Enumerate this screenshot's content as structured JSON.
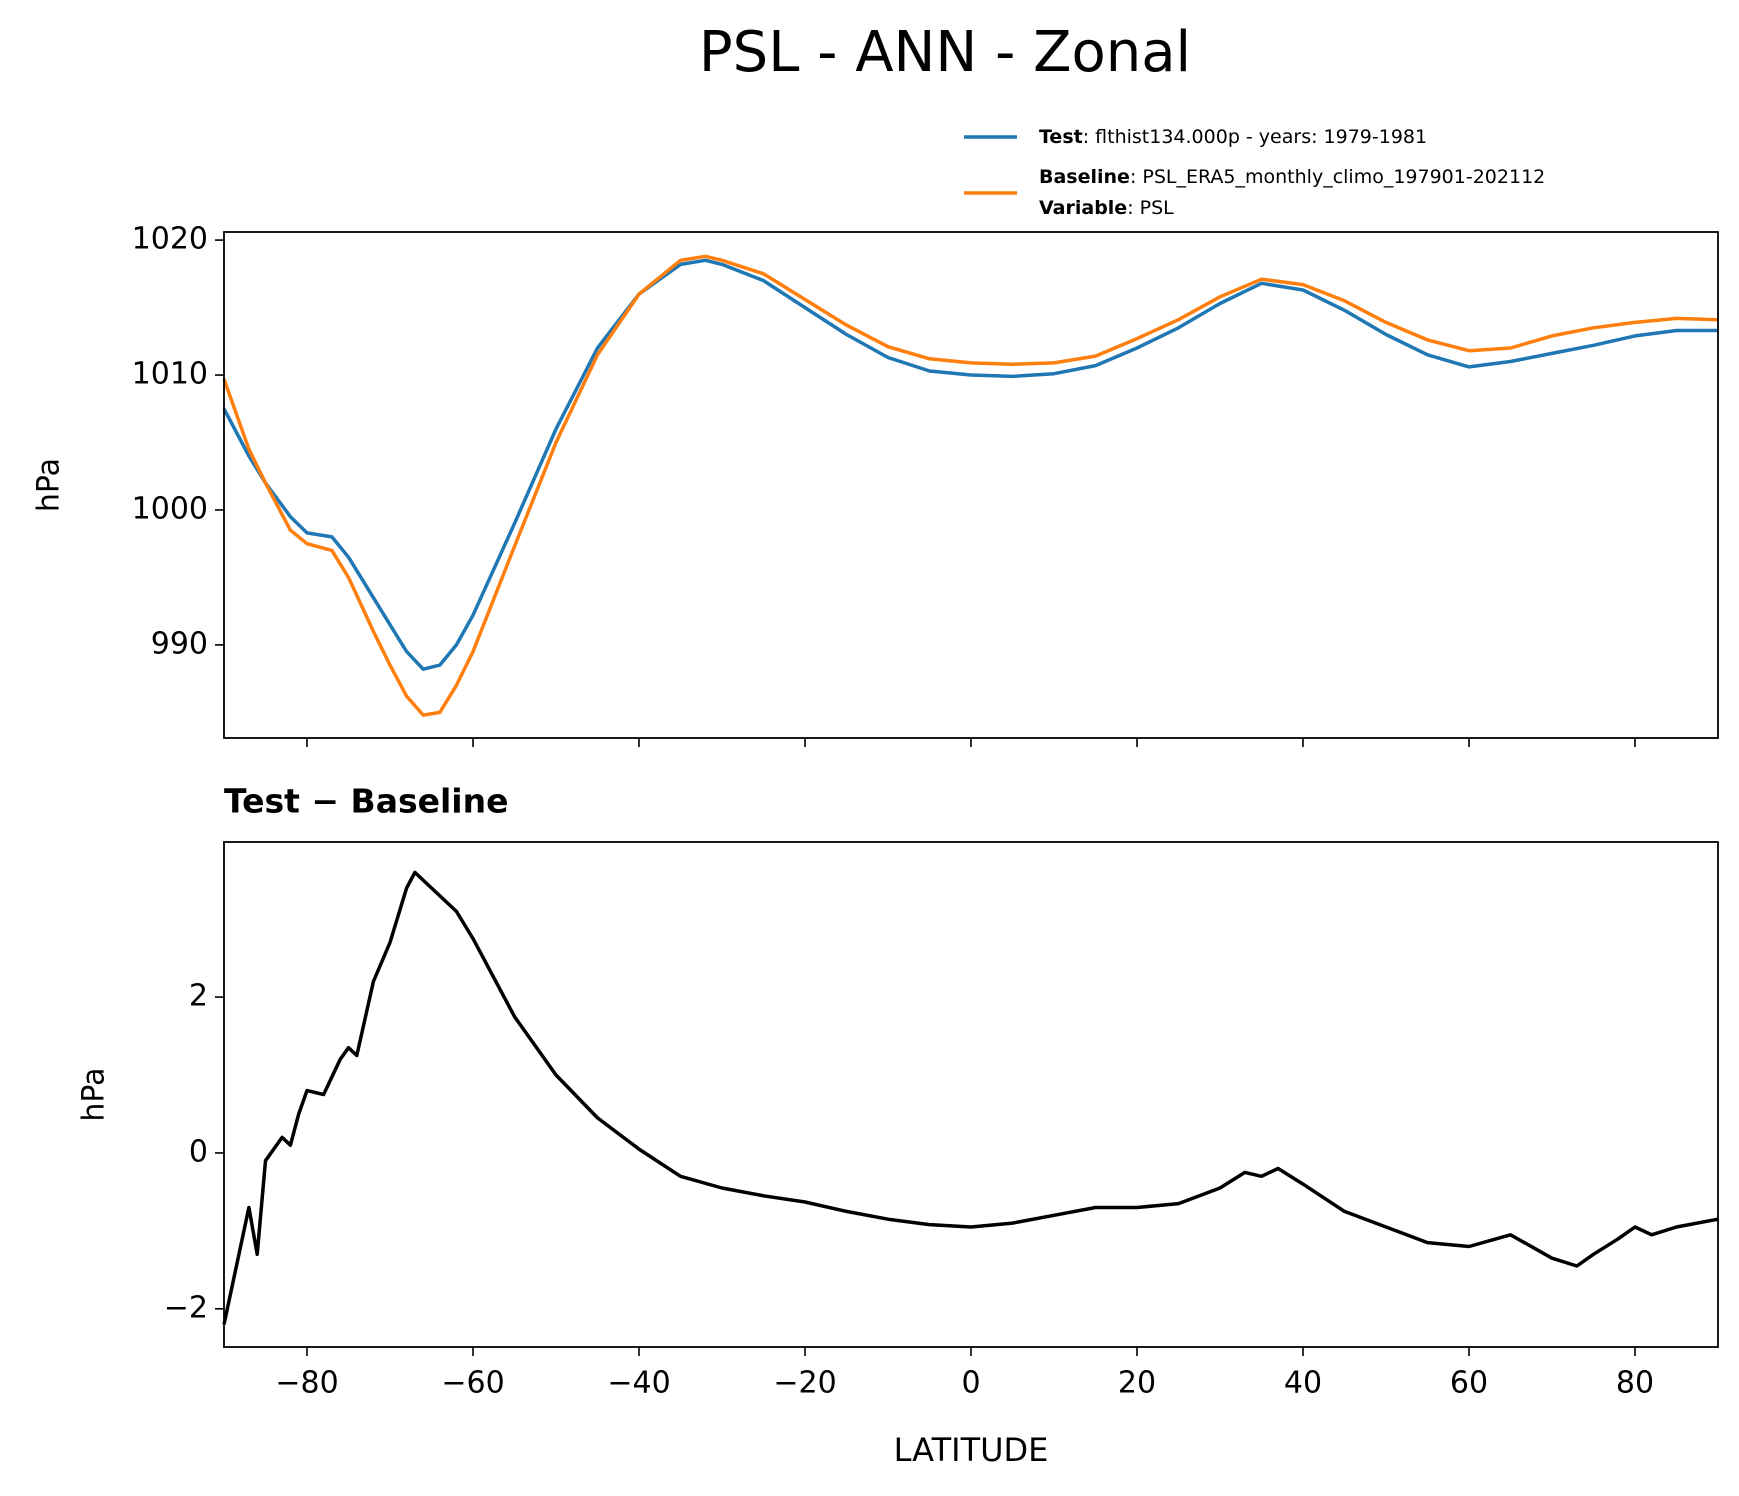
{
  "title": "PSL - ANN - Zonal",
  "chart_data": [
    {
      "type": "line",
      "ylabel": "hPa",
      "x": [
        -90,
        -87,
        -85,
        -82,
        -80,
        -77,
        -75,
        -72,
        -70,
        -68,
        -66,
        -64,
        -62,
        -60,
        -55,
        -50,
        -45,
        -40,
        -35,
        -32,
        -30,
        -25,
        -20,
        -15,
        -10,
        -5,
        0,
        5,
        10,
        15,
        20,
        25,
        30,
        35,
        40,
        45,
        50,
        55,
        60,
        65,
        70,
        75,
        80,
        85,
        90
      ],
      "series": [
        {
          "name": "Test",
          "description": ": flthist134.000p - years: 1979-1981",
          "color": "#1f77b4",
          "values": [
            1007.5,
            1004,
            1002,
            999.5,
            998.3,
            998,
            996.5,
            993.5,
            991.5,
            989.5,
            988.2,
            988.5,
            990,
            992.2,
            999,
            1006,
            1012,
            1016,
            1018.2,
            1018.5,
            1018.2,
            1017,
            1015,
            1013,
            1011.3,
            1010.3,
            1010,
            1009.9,
            1010.1,
            1010.7,
            1012,
            1013.5,
            1015.3,
            1016.8,
            1016.3,
            1014.8,
            1013,
            1011.5,
            1010.6,
            1011,
            1011.6,
            1012.2,
            1012.9,
            1013.3,
            1013.3
          ]
        },
        {
          "name": "Baseline",
          "description": ": PSL_ERA5_monthly_climo_197901-202112",
          "color": "#ff7f0e",
          "values": [
            1009.7,
            1004.5,
            1002,
            998.5,
            997.5,
            997,
            995,
            991,
            988.5,
            986.2,
            984.8,
            985,
            987,
            989.5,
            997.3,
            1005,
            1011.5,
            1016,
            1018.5,
            1018.8,
            1018.5,
            1017.5,
            1015.6,
            1013.7,
            1012.1,
            1011.2,
            1010.9,
            1010.8,
            1010.9,
            1011.4,
            1012.7,
            1014.1,
            1015.8,
            1017.1,
            1016.7,
            1015.5,
            1013.9,
            1012.6,
            1011.8,
            1012,
            1012.9,
            1013.5,
            1013.9,
            1014.2,
            1014.1
          ]
        }
      ],
      "legend_extra": {
        "name": "Variable",
        "description": ": PSL"
      },
      "xlim": [
        -90,
        90
      ],
      "xticks": [
        -80,
        -60,
        -40,
        -20,
        0,
        20,
        40,
        60,
        80
      ],
      "ylim": [
        983.1,
        1020.6
      ],
      "yticks": [
        990,
        1000,
        1010,
        1020
      ]
    },
    {
      "type": "line",
      "title": "Test − Baseline",
      "ylabel": "hPa",
      "xlabel": "LATITUDE",
      "color": "#000000",
      "x": [
        -90,
        -88,
        -87,
        -86,
        -85,
        -83,
        -82,
        -81,
        -80,
        -78,
        -76,
        -75,
        -74,
        -72,
        -70,
        -68,
        -67,
        -65,
        -62,
        -60,
        -55,
        -50,
        -45,
        -40,
        -35,
        -30,
        -25,
        -20,
        -15,
        -10,
        -5,
        0,
        5,
        10,
        15,
        20,
        25,
        30,
        33,
        35,
        37,
        40,
        45,
        50,
        55,
        60,
        65,
        70,
        73,
        75,
        78,
        80,
        82,
        85,
        90
      ],
      "values": [
        -2.2,
        -1.2,
        -0.7,
        -1.3,
        -0.1,
        0.2,
        0.1,
        0.5,
        0.8,
        0.75,
        1.2,
        1.35,
        1.25,
        2.2,
        2.7,
        3.4,
        3.6,
        3.4,
        3.1,
        2.75,
        1.75,
        1.0,
        0.45,
        0.05,
        -0.3,
        -0.45,
        -0.55,
        -0.63,
        -0.75,
        -0.85,
        -0.92,
        -0.95,
        -0.9,
        -0.8,
        -0.7,
        -0.7,
        -0.65,
        -0.45,
        -0.25,
        -0.3,
        -0.2,
        -0.4,
        -0.75,
        -0.95,
        -1.15,
        -1.2,
        -1.05,
        -1.35,
        -1.45,
        -1.3,
        -1.1,
        -0.95,
        -1.05,
        -0.95,
        -0.85
      ],
      "xlim": [
        -90,
        90
      ],
      "xticks": [
        {
          "value": -80,
          "label": "−80"
        },
        {
          "value": -60,
          "label": "−60"
        },
        {
          "value": -40,
          "label": "−40"
        },
        {
          "value": -20,
          "label": "−20"
        },
        0,
        20,
        40,
        60,
        80
      ],
      "ylim": [
        -2.49,
        3.99
      ],
      "yticks": [
        {
          "value": -2,
          "label": "−2"
        },
        0,
        2
      ]
    }
  ]
}
